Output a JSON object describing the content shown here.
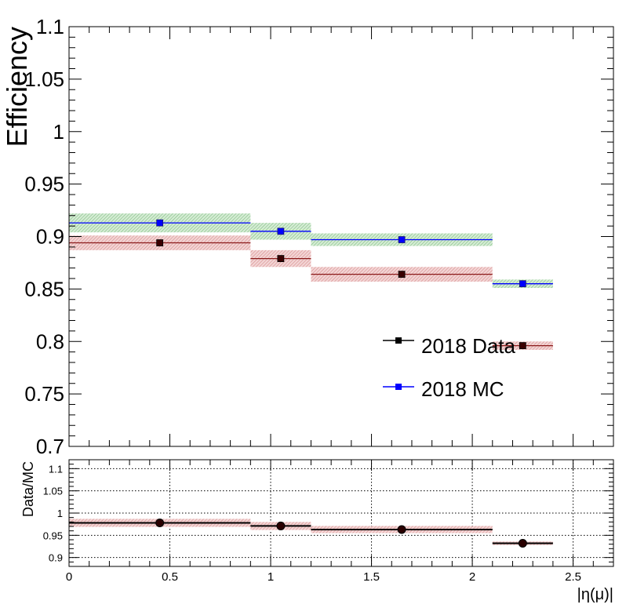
{
  "colors": {
    "data": "#000000",
    "mc": "#0000ff",
    "data_band": "#e0a3a3",
    "mc_band": "#99cc99",
    "ratio_point": "#2a0000"
  },
  "chart_data": [
    {
      "type": "scatter",
      "title": "",
      "xlabel": "",
      "ylabel": "Efficiency",
      "xlim": [
        0,
        2.7
      ],
      "ylim": [
        0.7,
        1.1
      ],
      "grid": false,
      "legend_position": "lower-right",
      "y_ticks": [
        "0.7",
        "0.75",
        "0.8",
        "0.85",
        "0.9",
        "0.95",
        "1",
        "1.05",
        "1.1"
      ],
      "series": [
        {
          "name": "2018 Data",
          "marker": "square",
          "x_bins": [
            [
              0,
              0.9
            ],
            [
              0.9,
              1.2
            ],
            [
              1.2,
              2.1
            ],
            [
              2.1,
              2.4
            ]
          ],
          "x": [
            0.45,
            1.05,
            1.65,
            2.25
          ],
          "values": [
            0.894,
            0.879,
            0.864,
            0.796
          ],
          "band_half_width": [
            0.007,
            0.008,
            0.007,
            0.004
          ]
        },
        {
          "name": "2018 MC",
          "marker": "square",
          "x_bins": [
            [
              0,
              0.9
            ],
            [
              0.9,
              1.2
            ],
            [
              1.2,
              2.1
            ],
            [
              2.1,
              2.4
            ]
          ],
          "x": [
            0.45,
            1.05,
            1.65,
            2.25
          ],
          "values": [
            0.913,
            0.905,
            0.897,
            0.855
          ],
          "band_half_width": [
            0.009,
            0.008,
            0.006,
            0.004
          ]
        }
      ]
    },
    {
      "type": "scatter",
      "title": "",
      "xlabel": "|η(μ)|",
      "ylabel": "Data/MC",
      "xlim": [
        0,
        2.7
      ],
      "ylim": [
        0.88,
        1.12
      ],
      "grid": true,
      "x_ticks": [
        "0",
        "0.5",
        "1",
        "1.5",
        "2",
        "2.5"
      ],
      "y_ticks": [
        "0.9",
        "0.95",
        "1",
        "1.05",
        "1.1"
      ],
      "series": [
        {
          "marker": "circle",
          "x_bins": [
            [
              0,
              0.9
            ],
            [
              0.9,
              1.2
            ],
            [
              1.2,
              2.1
            ],
            [
              2.1,
              2.4
            ]
          ],
          "x": [
            0.45,
            1.05,
            1.65,
            2.25
          ],
          "values": [
            0.978,
            0.971,
            0.963,
            0.932
          ],
          "band_half_width": [
            0.009,
            0.009,
            0.008,
            0.004
          ]
        }
      ]
    }
  ]
}
